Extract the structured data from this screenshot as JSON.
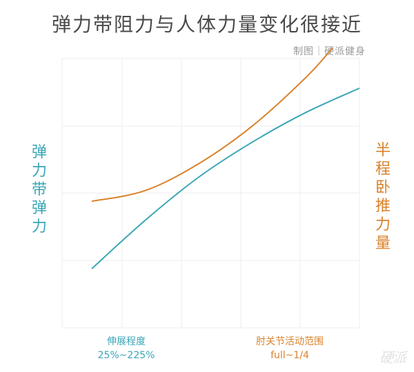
{
  "header": {
    "title": "弹力带阻力与人体力量变化很接近",
    "credit": "制图｜硬派健身"
  },
  "watermark": "硬派",
  "chart_data": {
    "type": "line",
    "title": "弹力带阻力与人体力量变化很接近",
    "grid": true,
    "legend": "none",
    "series": [
      {
        "name": "弹力带弹力",
        "color": "#3aa5b6",
        "xlabel": "伸展程度",
        "xrange": "25%~225%",
        "x": [
          0,
          0.2,
          0.4,
          0.6,
          0.8,
          1.0
        ],
        "y": [
          0.22,
          0.4,
          0.56,
          0.69,
          0.8,
          0.89
        ]
      },
      {
        "name": "半程卧推力量",
        "color": "#d9822b",
        "xlabel": "肘关节活动范围",
        "xrange": "full~1/4",
        "x": [
          0,
          0.2,
          0.4,
          0.6,
          0.8,
          0.9
        ],
        "y": [
          0.47,
          0.51,
          0.61,
          0.75,
          0.93,
          1.04
        ]
      }
    ]
  }
}
